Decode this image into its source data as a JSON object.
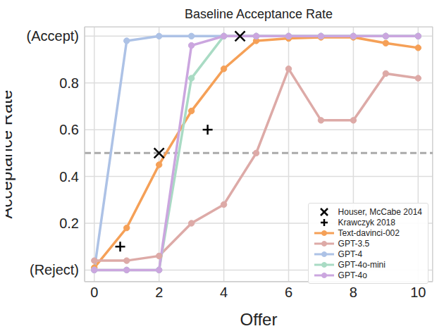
{
  "chart_data": {
    "type": "line",
    "title": "Baseline Acceptance Rate",
    "x_label": "Offer",
    "y_label": "Acceptance Rate",
    "x": [
      0,
      1,
      2,
      3,
      4,
      5,
      6,
      7,
      8,
      9,
      10
    ],
    "xlim": [
      -0.3,
      10.45
    ],
    "xticks": [
      0,
      2,
      4,
      6,
      8,
      10
    ],
    "ylim": [
      -0.05,
      1.04
    ],
    "yticks": [
      {
        "value": 0,
        "label": "(Reject)"
      },
      0.2,
      0.4,
      0.6,
      0.8,
      {
        "value": 1,
        "label": "(Accept)"
      }
    ],
    "grid": true,
    "legend": "lower right",
    "reference_lines": [
      {
        "y": 0.5,
        "color": "#aaaaaa",
        "line_style": "dashed"
      }
    ],
    "series": [
      {
        "name": "Houser, McCabe 2014",
        "type": "scatter",
        "marker": "x",
        "color": "#000000",
        "x": [
          2,
          4.5
        ],
        "values": [
          0.5,
          1.0
        ]
      },
      {
        "name": "Krawczyk 2018",
        "type": "scatter",
        "marker": "+",
        "color": "#000000",
        "x": [
          0.8,
          3.5
        ],
        "values": [
          0.1,
          0.6
        ]
      },
      {
        "name": "Text-davinci-002",
        "type": "line",
        "marker": "o",
        "color": "#f5a057",
        "values": [
          0.01,
          0.18,
          0.45,
          0.68,
          0.86,
          0.98,
          0.99,
          0.995,
          0.995,
          0.97,
          0.95
        ]
      },
      {
        "name": "GPT-3.5",
        "type": "line",
        "marker": "o",
        "color": "#ddaaa7",
        "values": [
          0.04,
          0.04,
          0.06,
          0.2,
          0.28,
          0.5,
          0.86,
          0.64,
          0.64,
          0.84,
          0.82
        ]
      },
      {
        "name": "GPT-4",
        "type": "line",
        "marker": "o",
        "color": "#adc2e6",
        "values": [
          0,
          0.98,
          1,
          1,
          1,
          1,
          1,
          1,
          1,
          1,
          1
        ]
      },
      {
        "name": "GPT-4o-mini",
        "type": "line",
        "marker": "o",
        "color": "#a9dbc4",
        "values": [
          0,
          0,
          0,
          0.82,
          1,
          1,
          1,
          1,
          1,
          1,
          1
        ]
      },
      {
        "name": "GPT-4o",
        "type": "line",
        "marker": "o",
        "color": "#cba6df",
        "values": [
          0,
          0,
          0,
          0.96,
          1,
          1,
          1,
          1,
          1,
          1,
          1
        ]
      }
    ]
  }
}
